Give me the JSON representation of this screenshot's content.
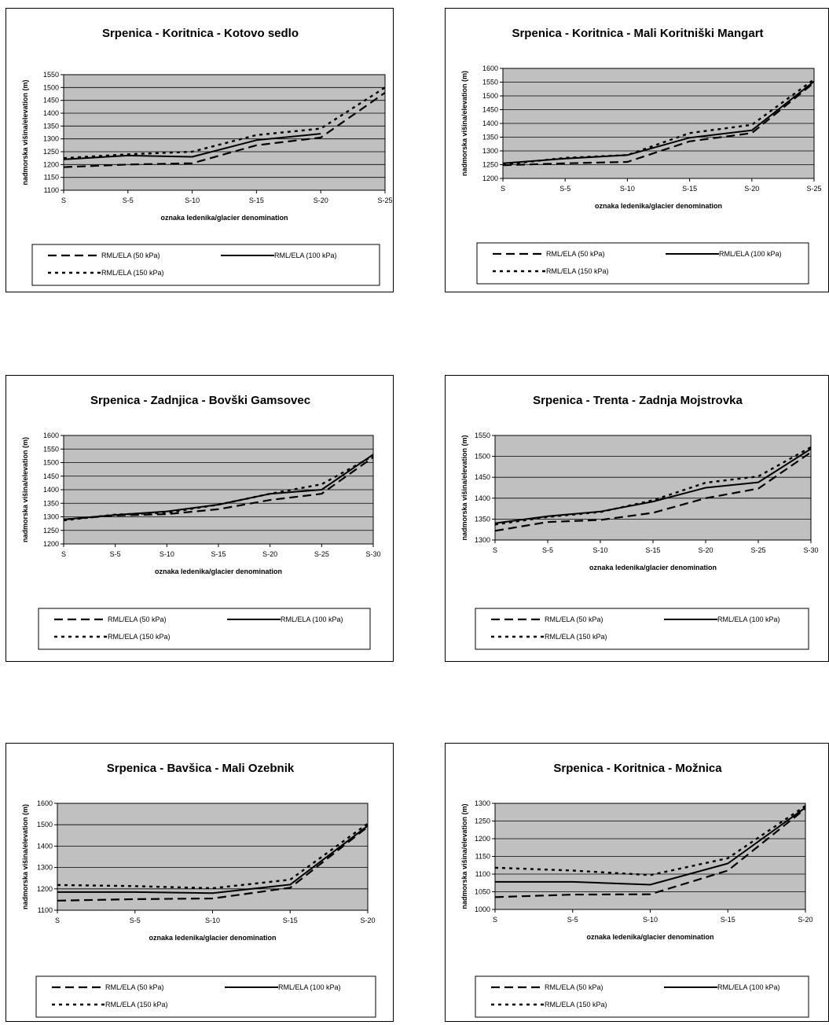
{
  "legend_labels": {
    "s50": "RML/ELA (50 kPa)",
    "s100": "RML/ELA (100 kPa)",
    "s150": "RML/ELA (150 kPa)"
  },
  "chart_data": [
    {
      "type": "line",
      "title": "Srpenica - Koritnica - Kotovo sedlo",
      "xlabel": "oznaka ledenika/glacier denomination",
      "ylabel": "nadmorska višina/elevation (m)",
      "categories": [
        "S",
        "S-5",
        "S-10",
        "S-15",
        "S-20",
        "S-25"
      ],
      "ylim": [
        1100,
        1550
      ],
      "yticks": [
        1100,
        1150,
        1200,
        1250,
        1300,
        1350,
        1400,
        1450,
        1500,
        1550
      ],
      "grid": true,
      "legend_position": "bottom",
      "series": [
        {
          "name": "RML/ELA (50 kPa)",
          "style": "dashed",
          "x": [
            0,
            5,
            10,
            15,
            20,
            25
          ],
          "values": [
            1190,
            1200,
            1205,
            1275,
            1305,
            1480
          ]
        },
        {
          "name": "RML/ELA (100 kPa)",
          "style": "solid",
          "x": [
            0,
            5,
            10,
            15,
            20
          ],
          "values": [
            1220,
            1235,
            1230,
            1295,
            1320
          ]
        },
        {
          "name": "RML/ELA (150 kPa)",
          "style": "dotted",
          "x": [
            0,
            5,
            10,
            15,
            20,
            25
          ],
          "values": [
            1225,
            1240,
            1250,
            1315,
            1340,
            1500
          ]
        }
      ]
    },
    {
      "type": "line",
      "title": "Srpenica - Koritnica - Mali Koritniški Mangart",
      "xlabel": "oznaka ledenika/glacier denomination",
      "ylabel": "nadmorska višina/elevation (m)",
      "categories": [
        "S",
        "S-5",
        "S-10",
        "S-15",
        "S-20",
        "S-25"
      ],
      "ylim": [
        1200,
        1600
      ],
      "yticks": [
        1200,
        1250,
        1300,
        1350,
        1400,
        1450,
        1500,
        1550,
        1600
      ],
      "grid": true,
      "legend_position": "bottom",
      "series": [
        {
          "name": "RML/ELA (50 kPa)",
          "style": "dashed",
          "x": [
            0,
            5,
            10,
            15,
            20,
            25
          ],
          "values": [
            1248,
            1255,
            1260,
            1335,
            1365,
            1548
          ]
        },
        {
          "name": "RML/ELA (100 kPa)",
          "style": "solid",
          "x": [
            0,
            5,
            10,
            15,
            20,
            25
          ],
          "values": [
            1255,
            1272,
            1285,
            1348,
            1375,
            1553
          ]
        },
        {
          "name": "RML/ELA (150 kPa)",
          "style": "dotted",
          "x": [
            0,
            5,
            10,
            15,
            20,
            25
          ],
          "values": [
            1250,
            1275,
            1285,
            1365,
            1395,
            1560
          ]
        }
      ]
    },
    {
      "type": "line",
      "title": "Srpenica - Zadnjica - Bovški Gamsovec",
      "xlabel": "oznaka ledenika/glacier denomination",
      "ylabel": "nadmorska višina/elevation (m)",
      "categories": [
        "S",
        "S-5",
        "S-10",
        "S-15",
        "S-20",
        "S-25",
        "S-30"
      ],
      "ylim": [
        1200,
        1600
      ],
      "yticks": [
        1200,
        1250,
        1300,
        1350,
        1400,
        1450,
        1500,
        1550,
        1600
      ],
      "grid": true,
      "legend_position": "bottom",
      "series": [
        {
          "name": "RML/ELA (50 kPa)",
          "style": "dashed",
          "x": [
            0,
            5,
            10,
            15,
            20,
            25,
            30
          ],
          "values": [
            1290,
            1305,
            1310,
            1328,
            1362,
            1385,
            1520
          ]
        },
        {
          "name": "RML/ELA (100 kPa)",
          "style": "solid",
          "x": [
            0,
            5,
            10,
            15,
            20,
            25,
            30
          ],
          "values": [
            1290,
            1307,
            1320,
            1345,
            1385,
            1400,
            1530
          ]
        },
        {
          "name": "RML/ELA (150 kPa)",
          "style": "dotted",
          "x": [
            0,
            5,
            10,
            15,
            20,
            25,
            30
          ],
          "values": [
            1287,
            1308,
            1315,
            1345,
            1385,
            1420,
            1525
          ]
        }
      ]
    },
    {
      "type": "line",
      "title": "Srpenica - Trenta - Zadnja Mojstrovka",
      "xlabel": "oznaka ledenika/glacier denomination",
      "ylabel": "nadmorska višina/elevation (m)",
      "categories": [
        "S",
        "S-5",
        "S-10",
        "S-15",
        "S-20",
        "S-25",
        "S-30"
      ],
      "ylim": [
        1300,
        1550
      ],
      "yticks": [
        1300,
        1350,
        1400,
        1450,
        1500,
        1550
      ],
      "grid": true,
      "legend_position": "bottom",
      "series": [
        {
          "name": "RML/ELA (50 kPa)",
          "style": "dashed",
          "x": [
            0,
            5,
            10,
            15,
            20,
            25,
            30
          ],
          "values": [
            1322,
            1343,
            1348,
            1365,
            1400,
            1423,
            1510
          ]
        },
        {
          "name": "RML/ELA (100 kPa)",
          "style": "solid",
          "x": [
            0,
            5,
            10,
            15,
            20,
            25,
            30
          ],
          "values": [
            1340,
            1357,
            1368,
            1392,
            1425,
            1438,
            1518
          ]
        },
        {
          "name": "RML/ELA (150 kPa)",
          "style": "dotted",
          "x": [
            0,
            5,
            10,
            15,
            20,
            25,
            30
          ],
          "values": [
            1337,
            1355,
            1367,
            1395,
            1437,
            1452,
            1522
          ]
        }
      ]
    },
    {
      "type": "line",
      "title": "Srpenica - Bavšica - Mali Ozebnik",
      "xlabel": "oznaka ledenika/glacier denomination",
      "ylabel": "nadmorska višina/elevation (m)",
      "categories": [
        "S",
        "S-5",
        "S-10",
        "S-15",
        "S-20"
      ],
      "ylim": [
        1100,
        1600
      ],
      "yticks": [
        1100,
        1200,
        1300,
        1400,
        1500,
        1600
      ],
      "grid": true,
      "legend_position": "bottom",
      "series": [
        {
          "name": "RML/ELA (50 kPa)",
          "style": "dashed",
          "x": [
            0,
            5,
            10,
            15,
            20
          ],
          "values": [
            1145,
            1152,
            1155,
            1205,
            1490
          ]
        },
        {
          "name": "RML/ELA (100 kPa)",
          "style": "solid",
          "x": [
            0,
            5,
            10,
            15,
            20
          ],
          "values": [
            1185,
            1185,
            1180,
            1220,
            1495
          ]
        },
        {
          "name": "RML/ELA (150 kPa)",
          "style": "dotted",
          "x": [
            0,
            5,
            10,
            15,
            20
          ],
          "values": [
            1218,
            1213,
            1203,
            1243,
            1505
          ]
        }
      ]
    },
    {
      "type": "line",
      "title": "Srpenica - Koritnica - Možnica",
      "xlabel": "oznaka ledenika/glacier denomination",
      "ylabel": "nadmorska višina/elevation (m)",
      "categories": [
        "S",
        "S-5",
        "S-10",
        "S-15",
        "S-20"
      ],
      "ylim": [
        1000,
        1300
      ],
      "yticks": [
        1000,
        1050,
        1100,
        1150,
        1200,
        1250,
        1300
      ],
      "grid": true,
      "legend_position": "bottom",
      "series": [
        {
          "name": "RML/ELA (50 kPa)",
          "style": "dashed",
          "x": [
            0,
            5,
            10,
            15,
            20
          ],
          "values": [
            1035,
            1042,
            1043,
            1110,
            1285
          ]
        },
        {
          "name": "RML/ELA (100 kPa)",
          "style": "solid",
          "x": [
            0,
            5,
            10,
            15,
            20
          ],
          "values": [
            1078,
            1078,
            1070,
            1130,
            1288
          ]
        },
        {
          "name": "RML/ELA (150 kPa)",
          "style": "dotted",
          "x": [
            0,
            5,
            10,
            15,
            20
          ],
          "values": [
            1118,
            1110,
            1097,
            1145,
            1293
          ]
        }
      ]
    }
  ]
}
